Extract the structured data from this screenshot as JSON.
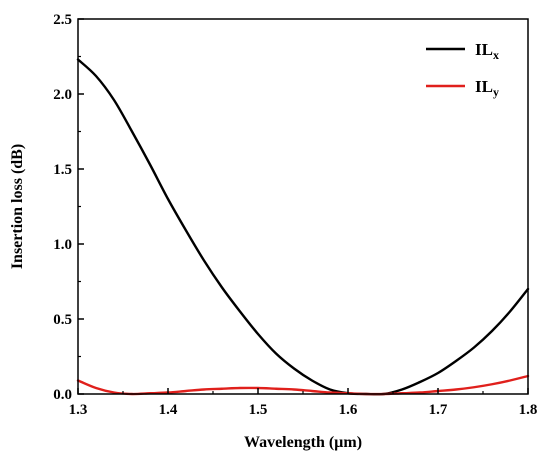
{
  "chart_data": {
    "type": "line",
    "xlabel": "Wavelength (µm)",
    "ylabel": "Insertion loss (dB)",
    "xlim": [
      1.3,
      1.8
    ],
    "ylim": [
      0.0,
      2.5
    ],
    "xticks": [
      "1.3",
      "1.4",
      "1.5",
      "1.6",
      "1.7",
      "1.8"
    ],
    "yticks": [
      "0.0",
      "0.5",
      "1.0",
      "1.5",
      "2.0",
      "2.5"
    ],
    "grid": false,
    "legend_position": "top-right",
    "series": [
      {
        "name_main": "IL",
        "name_sub": "x",
        "color": "#000000",
        "x": [
          1.3,
          1.32,
          1.34,
          1.36,
          1.38,
          1.4,
          1.42,
          1.44,
          1.46,
          1.48,
          1.5,
          1.52,
          1.54,
          1.56,
          1.58,
          1.6,
          1.62,
          1.64,
          1.66,
          1.68,
          1.7,
          1.72,
          1.74,
          1.76,
          1.78,
          1.8
        ],
        "y": [
          2.23,
          2.12,
          1.96,
          1.75,
          1.53,
          1.3,
          1.09,
          0.89,
          0.71,
          0.55,
          0.4,
          0.27,
          0.17,
          0.09,
          0.03,
          0.005,
          0.0,
          0.0,
          0.03,
          0.08,
          0.14,
          0.22,
          0.31,
          0.42,
          0.55,
          0.7
        ]
      },
      {
        "name_main": "IL",
        "name_sub": "y",
        "color": "#e0201c",
        "x": [
          1.3,
          1.32,
          1.34,
          1.36,
          1.38,
          1.4,
          1.42,
          1.44,
          1.46,
          1.48,
          1.5,
          1.52,
          1.54,
          1.56,
          1.58,
          1.6,
          1.62,
          1.64,
          1.66,
          1.68,
          1.7,
          1.72,
          1.74,
          1.76,
          1.78,
          1.8
        ],
        "y": [
          0.09,
          0.04,
          0.01,
          0.0,
          0.005,
          0.01,
          0.02,
          0.03,
          0.035,
          0.04,
          0.04,
          0.035,
          0.03,
          0.02,
          0.01,
          0.005,
          0.0,
          0.0,
          0.005,
          0.01,
          0.02,
          0.03,
          0.045,
          0.065,
          0.09,
          0.12
        ]
      }
    ]
  }
}
